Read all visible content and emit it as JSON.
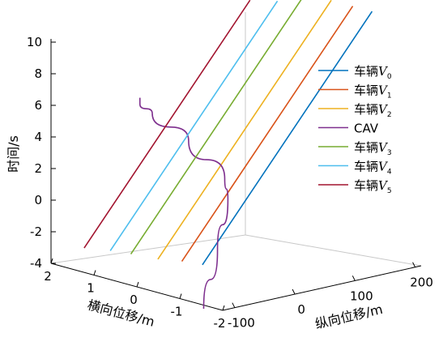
{
  "chart_data": {
    "type": "line",
    "ylabel": "时间/s",
    "xlabel": "横向位移/m",
    "zlabel": "纵向位移/m",
    "time_ticks": [
      "-4",
      "-2",
      "0",
      "2",
      "4",
      "6",
      "8",
      "10"
    ],
    "lateral_ticks": [
      "2",
      "1",
      "0",
      "-1",
      "-2"
    ],
    "longitudinal_ticks": [
      "-100",
      "0",
      "100",
      "200"
    ],
    "time_range": [
      -4,
      11
    ],
    "lateral_range": [
      -2,
      2
    ],
    "longitudinal_range": [
      -120,
      210
    ],
    "grid": false,
    "legend_position": "right",
    "series": [
      {
        "name": "车辆",
        "var": "V",
        "sub": "0",
        "color": "#0072BD",
        "points": [
          [
            -1.0,
            -2.2,
            -2.2
          ],
          [
            -1.0,
            2.3,
            2.3
          ],
          [
            -1.0,
            11.3,
            11.3
          ]
        ]
      },
      {
        "name": "车辆",
        "var": "V",
        "sub": "1",
        "color": "#D95319",
        "points": [
          [
            -0.55,
            -2.3,
            -2.3
          ],
          [
            -0.55,
            1.4,
            1.4
          ],
          [
            -0.55,
            11.3,
            11.3
          ]
        ]
      },
      {
        "name": "车辆",
        "var": "V",
        "sub": "2",
        "color": "#EDB120",
        "points": [
          [
            -0.05,
            -2.5,
            -2.5
          ],
          [
            -0.05,
            0.6,
            0.6
          ],
          [
            -0.05,
            11.3,
            11.3
          ]
        ]
      },
      {
        "name": "CAV",
        "var": "",
        "sub": "",
        "color": "#7E2F8E",
        "points": [
          [
            -1.0,
            -2.1,
            -5.0
          ],
          [
            -1.0,
            -1.0,
            -1.5
          ],
          [
            -0.95,
            0.0,
            1.5
          ],
          [
            -0.7,
            0.6,
            2.5
          ],
          [
            0.2,
            0.8,
            4.2
          ],
          [
            0.9,
            0.3,
            5.5
          ],
          [
            1.1,
            0.0,
            6.0
          ],
          [
            1.1,
            0.0,
            6.4
          ]
        ]
      },
      {
        "name": "车辆",
        "var": "V",
        "sub": "3",
        "color": "#77AC30",
        "points": [
          [
            0.55,
            -2.6,
            -2.6
          ],
          [
            0.55,
            -0.1,
            -0.1
          ],
          [
            0.55,
            11.0,
            11.0
          ]
        ]
      },
      {
        "name": "车辆",
        "var": "V",
        "sub": "4",
        "color": "#4DBEEE",
        "points": [
          [
            1.0,
            -2.7,
            -2.7
          ],
          [
            1.0,
            -0.7,
            -0.7
          ],
          [
            1.0,
            10.6,
            10.6
          ]
        ]
      },
      {
        "name": "车辆",
        "var": "V",
        "sub": "5",
        "color": "#A2142F",
        "points": [
          [
            1.55,
            -2.9,
            -2.9
          ],
          [
            1.55,
            -1.1,
            -1.1
          ],
          [
            1.55,
            10.3,
            10.3
          ]
        ]
      }
    ]
  }
}
